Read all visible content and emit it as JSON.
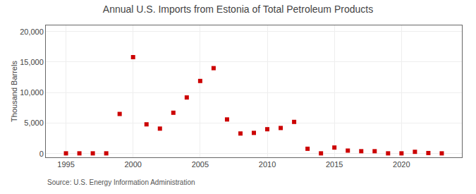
{
  "chart_data": {
    "type": "scatter",
    "title": "Annual U.S. Imports from Estonia of Total Petroleum Products",
    "ylabel": "Thousand Barrels",
    "annotations": [
      "Source: U.S. Energy Information Administration"
    ],
    "x": [
      1995,
      1996,
      1997,
      1998,
      1999,
      2000,
      2001,
      2002,
      2003,
      2004,
      2005,
      2006,
      2007,
      2008,
      2009,
      2010,
      2011,
      2012,
      2013,
      2014,
      2015,
      2016,
      2017,
      2018,
      2019,
      2020,
      2021,
      2022,
      2023
    ],
    "values": [
      50,
      50,
      50,
      50,
      6500,
      15800,
      4800,
      4100,
      6700,
      9200,
      11900,
      14000,
      5600,
      3300,
      3400,
      4000,
      4200,
      5200,
      800,
      50,
      1000,
      500,
      400,
      400,
      50,
      50,
      300,
      100,
      50
    ],
    "color": "#cc0000",
    "marker": "square",
    "xlim": [
      1993.5,
      2024.5
    ],
    "ylim": [
      -600,
      21000
    ],
    "xticks": [
      1995,
      2000,
      2005,
      2010,
      2015,
      2020
    ],
    "yticks": [
      0,
      {
        "value": 5000,
        "label": "5,000"
      },
      {
        "value": 10000,
        "label": "10,000"
      },
      {
        "value": 15000,
        "label": "15,000"
      },
      {
        "value": 20000,
        "label": "20,000"
      }
    ],
    "grid": true
  }
}
